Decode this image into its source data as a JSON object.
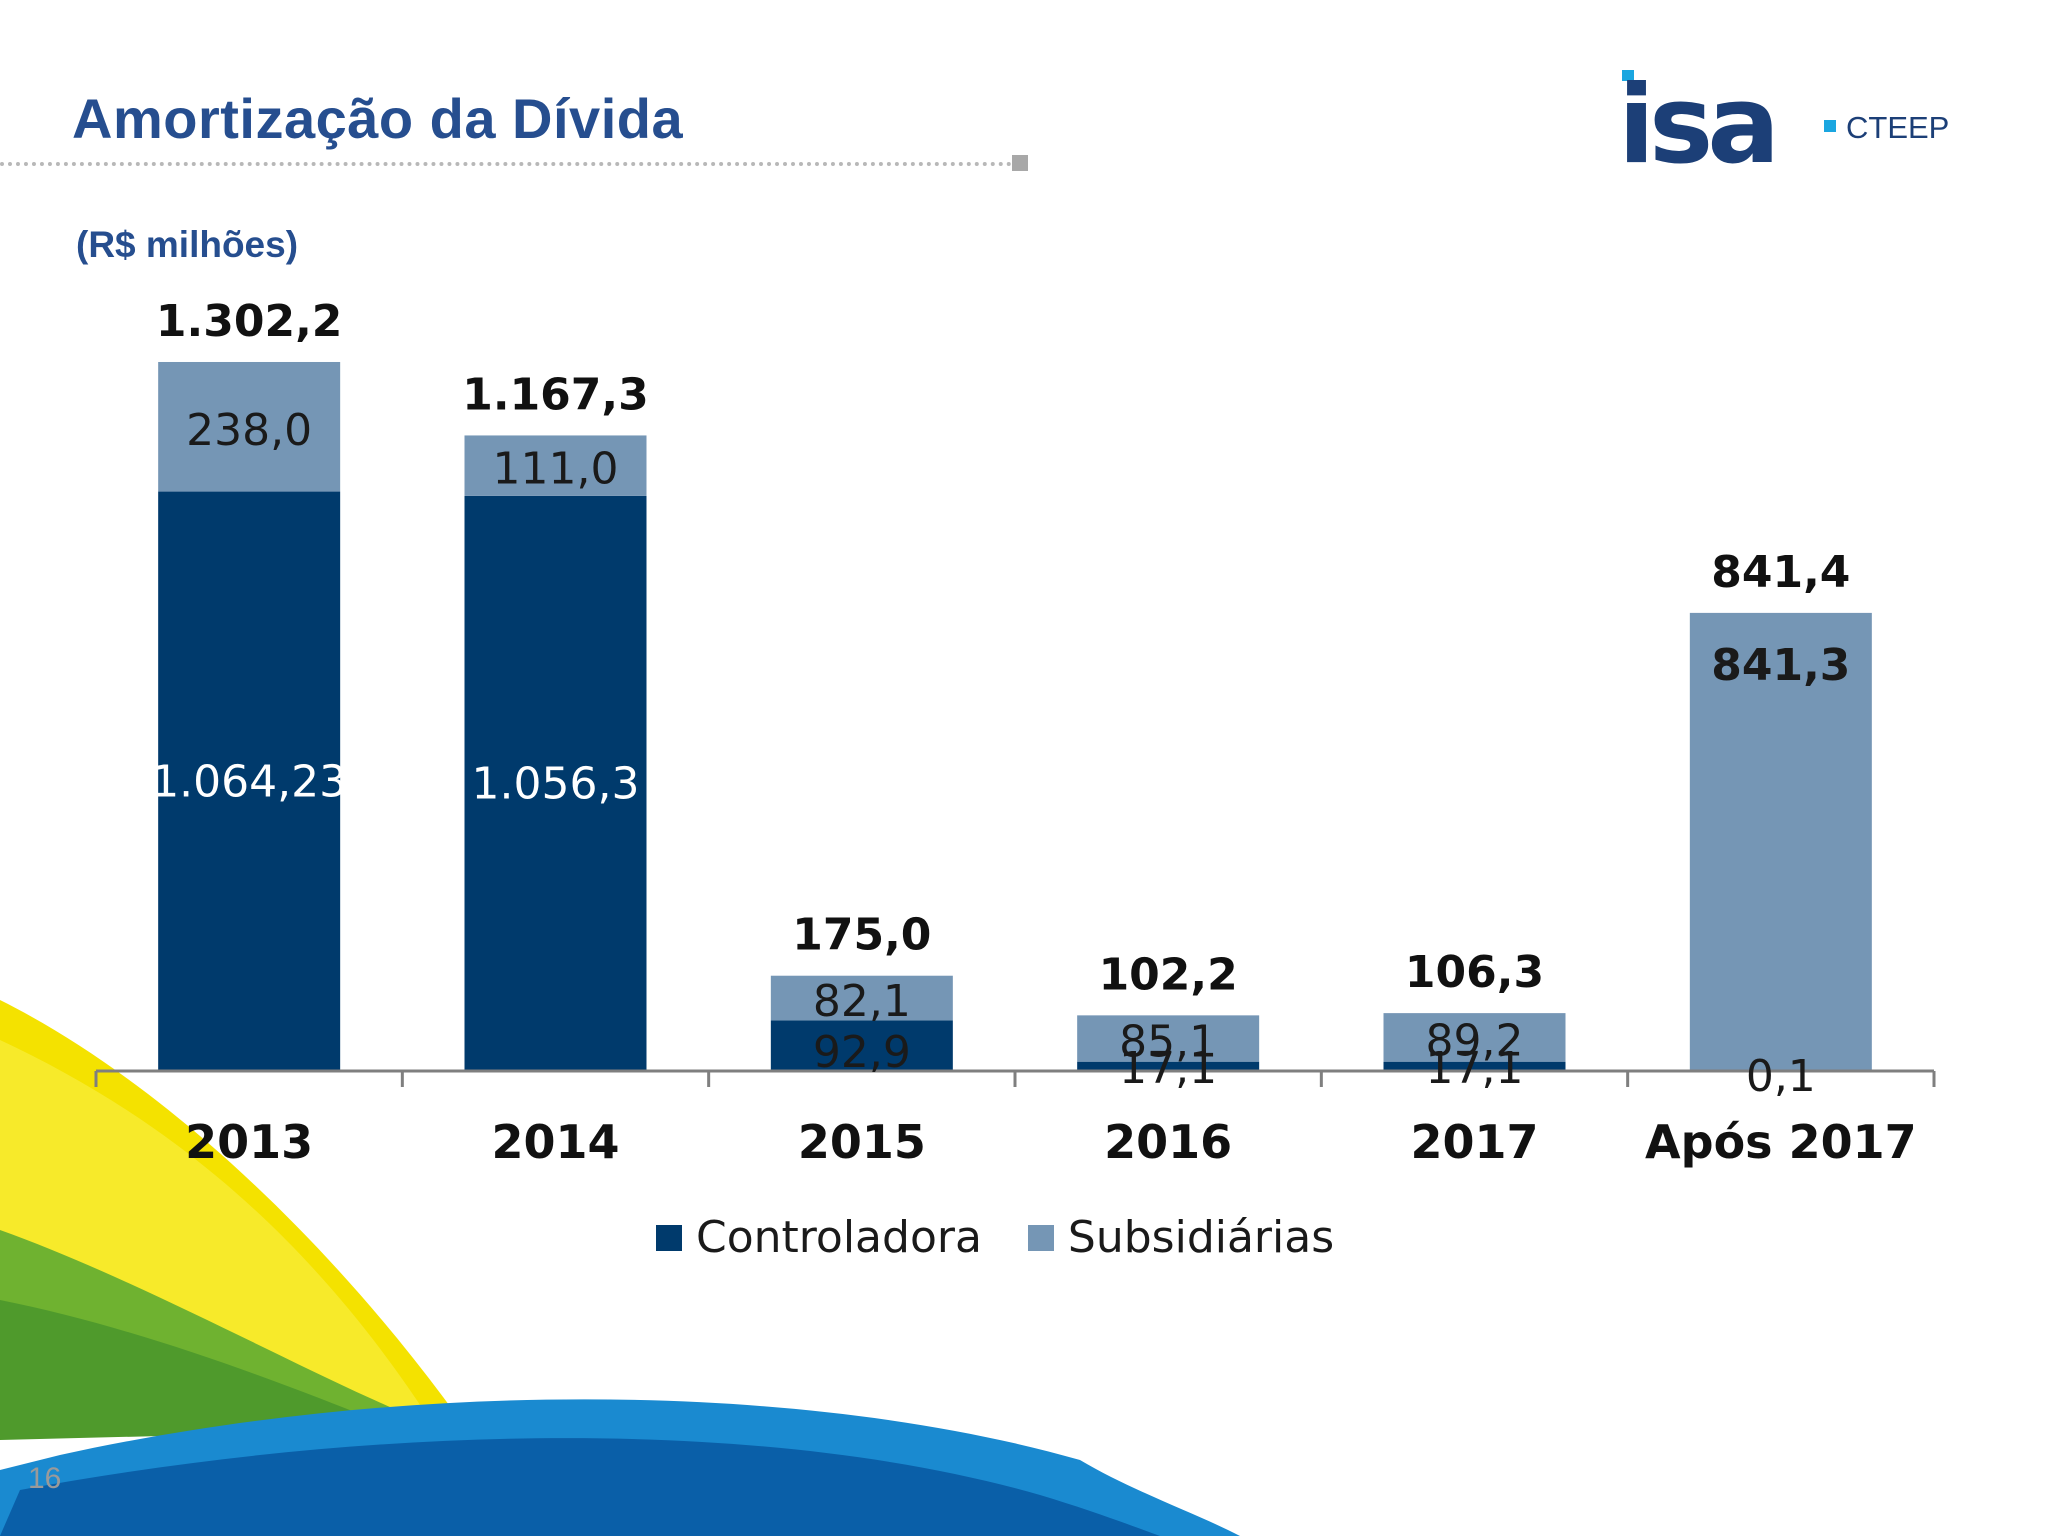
{
  "slide": {
    "title": "Amortização da Dívida",
    "page_number": "16",
    "logo_main": "isa",
    "logo_sub": "CTEEP"
  },
  "colors": {
    "title": "#264e8f",
    "controladora": "#003a6c",
    "subsidiarias": "#7596b5",
    "axis": "#7f7f7f",
    "swoosh_yellow": "#f4e200",
    "swoosh_green": "#6fb230",
    "swoosh_blue": "#0068b4"
  },
  "chart_data": {
    "type": "bar",
    "stacked": true,
    "title": "",
    "subtitle": "(R$ milhões)",
    "categories": [
      "2013",
      "2014",
      "2015",
      "2016",
      "2017",
      "Após 2017"
    ],
    "series": [
      {
        "name": "Controladora",
        "values": [
          1064.23,
          1056.3,
          92.9,
          17.1,
          17.1,
          0.1
        ],
        "labels": [
          "1.064,23",
          "1.056,3",
          "92,9",
          "17,1",
          "17,1",
          "0,1"
        ]
      },
      {
        "name": "Subsidiárias",
        "values": [
          238.0,
          111.0,
          82.1,
          85.1,
          89.2,
          841.3
        ],
        "labels": [
          "238,0",
          "111,0",
          "82,1",
          "85,1",
          "89,2",
          "841,3"
        ]
      }
    ],
    "totals": [
      1302.2,
      1167.3,
      175.0,
      102.2,
      106.3,
      841.4
    ],
    "total_labels": [
      "1.302,2",
      "1.167,3",
      "175,0",
      "102,2",
      "106,3",
      "841,4"
    ],
    "ylim": [
      0,
      1302.2
    ],
    "grid": false,
    "legend": "bottom"
  }
}
